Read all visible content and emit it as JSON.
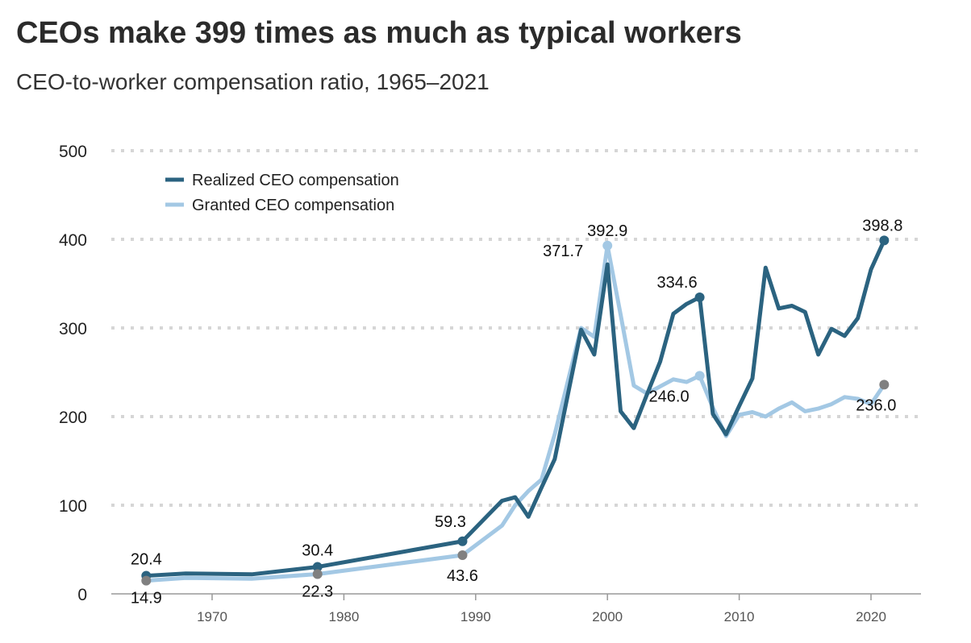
{
  "chart_data": {
    "type": "line",
    "title": "CEOs make 399 times as much as typical workers",
    "subtitle": "CEO-to-worker compensation ratio, 1965–2021",
    "xlabel": "",
    "ylabel": "",
    "ylim": [
      0,
      500
    ],
    "xlim": [
      1963,
      2024
    ],
    "yticks": [
      0,
      100,
      200,
      300,
      400,
      500
    ],
    "xticks": [
      1970,
      1980,
      1990,
      2000,
      2010,
      2020
    ],
    "grid": true,
    "legend_position": "top-left",
    "series": [
      {
        "name": "Realized CEO compensation",
        "color": "#2b6380",
        "x": [
          1965,
          1968,
          1973,
          1978,
          1989,
          1992,
          1993,
          1994,
          1995,
          1996,
          1997,
          1998,
          1999,
          2000,
          2001,
          2002,
          2003,
          2004,
          2005,
          2006,
          2007,
          2008,
          2009,
          2010,
          2011,
          2012,
          2013,
          2014,
          2015,
          2016,
          2017,
          2018,
          2019,
          2020,
          2021
        ],
        "values": [
          20.4,
          23,
          22,
          30.4,
          59.3,
          105,
          109,
          87,
          120,
          152,
          225,
          298,
          270,
          371.7,
          206,
          187,
          225,
          262,
          316,
          327,
          334.6,
          203,
          180,
          212,
          243,
          368,
          322,
          325,
          318,
          270,
          299,
          291,
          311,
          366,
          398.8
        ]
      },
      {
        "name": "Granted CEO compensation",
        "color": "#a3c8e4",
        "x": [
          1965,
          1968,
          1973,
          1978,
          1989,
          1992,
          1993,
          1994,
          1995,
          1996,
          1997,
          1998,
          1999,
          2000,
          2001,
          2002,
          2003,
          2004,
          2005,
          2006,
          2007,
          2008,
          2009,
          2010,
          2011,
          2012,
          2013,
          2014,
          2015,
          2016,
          2017,
          2018,
          2019,
          2020,
          2021
        ],
        "values": [
          14.9,
          18,
          17,
          22.3,
          43.6,
          77,
          100,
          116,
          129,
          180,
          240,
          300,
          290,
          392.9,
          315,
          235,
          226,
          234,
          242,
          239,
          246.0,
          210,
          178,
          202,
          205,
          200,
          209,
          216,
          206,
          209,
          214,
          222,
          220,
          214,
          236.0
        ]
      }
    ],
    "annotations": [
      {
        "series": 0,
        "x": 1965,
        "label": "20.4",
        "dot": "#2b6380",
        "dx": 0,
        "dy": -14
      },
      {
        "series": 0,
        "x": 1978,
        "label": "30.4",
        "dot": "#2b6380",
        "dx": 0,
        "dy": -14
      },
      {
        "series": 0,
        "x": 1989,
        "label": "59.3",
        "dot": "#2b6380",
        "dx": -15,
        "dy": -18
      },
      {
        "series": 0,
        "x": 2000,
        "label": "371.7",
        "dot": null,
        "dx": -55,
        "dy": -10
      },
      {
        "series": 0,
        "x": 2007,
        "label": "334.6",
        "dot": "#2b6380",
        "dx": -28,
        "dy": -12
      },
      {
        "series": 0,
        "x": 2021,
        "label": "398.8",
        "dot": "#2b6380",
        "dx": -2,
        "dy": -12
      },
      {
        "series": 1,
        "x": 1965,
        "label": "14.9",
        "dot": "#808080",
        "dx": 0,
        "dy": 28
      },
      {
        "series": 1,
        "x": 1978,
        "label": "22.3",
        "dot": "#808080",
        "dx": 0,
        "dy": 28
      },
      {
        "series": 1,
        "x": 1989,
        "label": "43.6",
        "dot": "#808080",
        "dx": 0,
        "dy": 32
      },
      {
        "series": 1,
        "x": 2000,
        "label": "392.9",
        "dot": "#a3c8e4",
        "dx": 0,
        "dy": -12
      },
      {
        "series": 1,
        "x": 2007,
        "label": "246.0",
        "dot": "#a3c8e4",
        "dx": -38,
        "dy": 32
      },
      {
        "series": 1,
        "x": 2021,
        "label": "236.0",
        "dot": "#808080",
        "dx": -10,
        "dy": 32
      }
    ]
  }
}
